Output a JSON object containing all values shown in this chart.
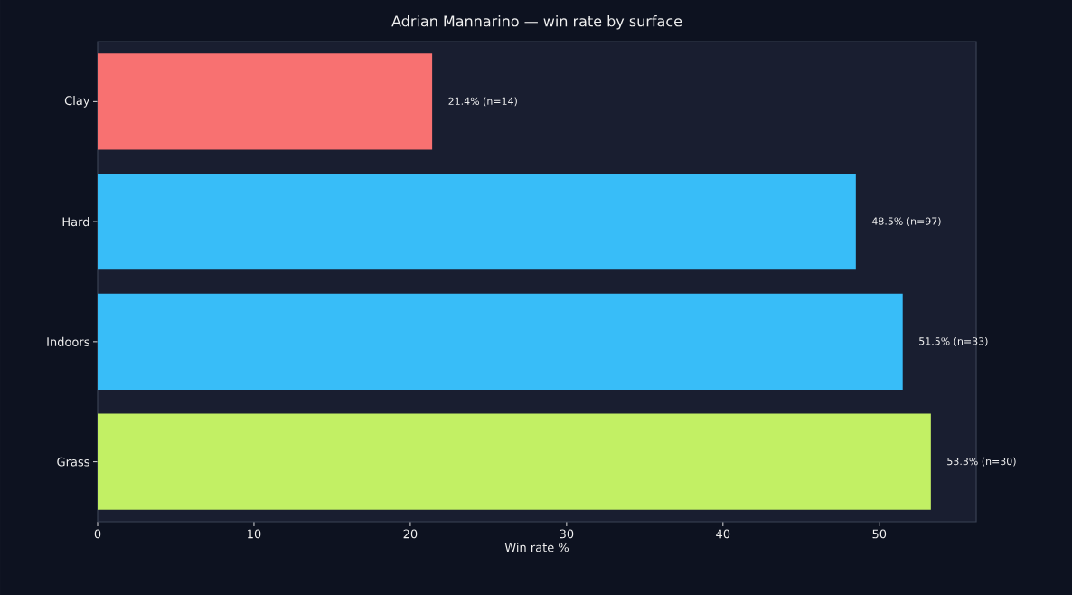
{
  "chart_data": {
    "type": "bar",
    "orientation": "horizontal",
    "title": "Adrian Mannarino — win rate by surface",
    "xlabel": "Win rate %",
    "categories": [
      "Clay",
      "Hard",
      "Indoors",
      "Grass"
    ],
    "values": [
      21.4,
      48.5,
      51.5,
      53.3
    ],
    "colors": [
      "#f87171",
      "#38bdf8",
      "#38bdf8",
      "#c2f064"
    ],
    "value_labels": [
      "21.4% (n=14)",
      "48.5% (n=97)",
      "51.5% (n=33)",
      "53.3% (n=30)"
    ],
    "xlim": [
      0,
      56.2
    ],
    "xticks": [
      0,
      10,
      20,
      30,
      40,
      50
    ]
  }
}
